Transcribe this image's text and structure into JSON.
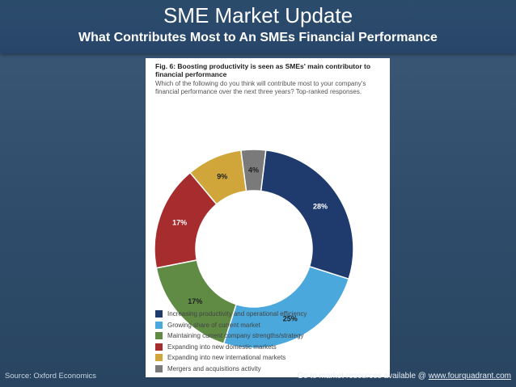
{
  "slide": {
    "title": "SME Market Update",
    "subtitle": "What Contributes Most to An SMEs Financial Performance",
    "source": "Source: Oxford Economics",
    "resources_text": "Go to market resources available @ ",
    "resources_link": "www.fourquadrant.com"
  },
  "chart_data": {
    "type": "pie",
    "title": "Fig. 6: Boosting productivity is seen as SMEs' main contributor to financial performance",
    "subtitle": "Which of the following do you think will contribute most to your company's financial performance over the next three years? Top-ranked responses.",
    "donut": true,
    "legend_position": "bottom",
    "series": [
      {
        "name": "Increasing productivity and operational efficiency",
        "value": 28,
        "label": "28%",
        "color": "#1f3b6e"
      },
      {
        "name": "Growing share of current market",
        "value": 25,
        "label": "25%",
        "color": "#4aa8dc"
      },
      {
        "name": "Maintaining current company strengths/strategy",
        "value": 17,
        "label": "17%",
        "color": "#5f8b44"
      },
      {
        "name": "Expanding into new domestic markets",
        "value": 17,
        "label": "17%",
        "color": "#a72c2e"
      },
      {
        "name": "Expanding into new international markets",
        "value": 9,
        "label": "9%",
        "color": "#d0a63a"
      },
      {
        "name": "Mergers and acquisitions activity",
        "value": 4,
        "label": "4%",
        "color": "#7a7a7a"
      }
    ]
  }
}
